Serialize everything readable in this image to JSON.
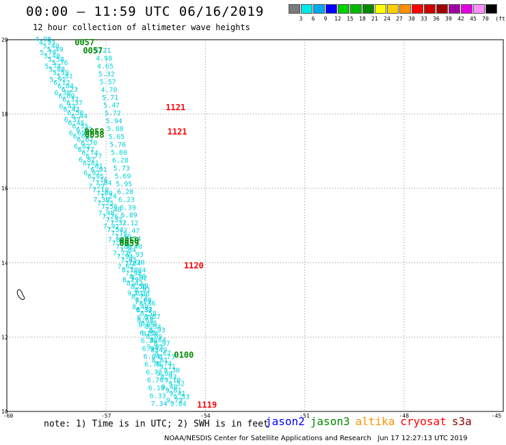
{
  "header": {
    "title": "00:00 — 11:59 UTC 06/16/2019",
    "subtitle": "12 hour collection of altimeter wave heights"
  },
  "colorbar": {
    "unit": "(ft)",
    "items": [
      {
        "label": "3",
        "color": "#7a7a7a"
      },
      {
        "label": "6",
        "color": "#00e8e8"
      },
      {
        "label": "9",
        "color": "#00a8f0"
      },
      {
        "label": "12",
        "color": "#0000ff"
      },
      {
        "label": "15",
        "color": "#00d000"
      },
      {
        "label": "18",
        "color": "#00b800"
      },
      {
        "label": "21",
        "color": "#008800"
      },
      {
        "label": "24",
        "color": "#ffff00"
      },
      {
        "label": "27",
        "color": "#ffd000"
      },
      {
        "label": "30",
        "color": "#ff9000"
      },
      {
        "label": "33",
        "color": "#ff0000"
      },
      {
        "label": "36",
        "color": "#d00000"
      },
      {
        "label": "39",
        "color": "#a00000"
      },
      {
        "label": "42",
        "color": "#a000a0"
      },
      {
        "label": "45",
        "color": "#e000e0"
      },
      {
        "label": "70",
        "color": "#ff90ff"
      },
      {
        "label": "",
        "color": "#000000"
      }
    ]
  },
  "footer": {
    "note": "note: 1) Time is in UTC; 2) SWH is in feet",
    "credit": "NOAA/NESDIS Center for Satellite Applications and Research   Jun 17 12:27:13 UTC 2019",
    "legend": [
      {
        "label": "jason2",
        "color": "#0000ff"
      },
      {
        "label": "jason3",
        "color": "#008800"
      },
      {
        "label": "altika",
        "color": "#ff9000"
      },
      {
        "label": "cryosat",
        "color": "#ff0000"
      },
      {
        "label": "s3a",
        "color": "#8b0000"
      }
    ]
  },
  "chart_data": {
    "type": "scatter",
    "title": "00:00 — 11:59 UTC 06/16/2019",
    "xlim": [
      -60,
      -45
    ],
    "ylim": [
      10,
      20
    ],
    "xticks": [
      "-60",
      "-57",
      "-54",
      "-51",
      "-48",
      "-45"
    ],
    "yticks": [
      "10",
      "12",
      "14",
      "16",
      "18",
      "20"
    ],
    "grid": true,
    "track_a": {
      "x_start": -59.15,
      "y_start": 19.95,
      "x_end": -55.15,
      "y_end": 10.15,
      "values": [
        "4.98",
        "4.93",
        "5.40",
        "5.49",
        "5.74",
        "5.40",
        "5.58",
        "5.76",
        "5.74",
        "5.88",
        "5.59",
        "5.81",
        "5.91",
        "6.12",
        "6.04",
        "6.23",
        "6.30",
        "6.09",
        "6.37",
        "6.37",
        "6.43",
        "6.43",
        "6.50",
        "6.44",
        "6.37",
        "6.45",
        "6.55",
        "6.62",
        "6.69",
        "6.63",
        "6.67",
        "6.70",
        "6.62",
        "6.77",
        "6.74",
        "6.77",
        "6.87",
        "6.81",
        "7.01",
        "6.91",
        "6.97",
        "6.95",
        "7.16",
        "7.04",
        "7.27",
        "7.10",
        "7.09",
        "7.24",
        "7.30",
        "7.25",
        "7.56",
        "7.40",
        "7.48",
        "7.26",
        "7.37",
        "7.32",
        "7.41",
        "7.54",
        "7.16",
        "7.40",
        "7.88",
        "7.60",
        "7.86",
        "7.64",
        "7.71",
        "7.94",
        "7.85",
        "7.84",
        "7.62",
        "8.10",
        "7.98",
        "8.18",
        "8.29",
        "8.42",
        "8.56",
        "8.91",
        "9.01",
        "8.75",
        "8.60",
        "8.36",
        "8.49",
        "8.37",
        "8.58",
        "8.57",
        "8.63",
        "8.75",
        "8.34",
        "8.93",
        "8.54",
        "8.69",
        "8.64",
        "8.97",
        "9.03",
        "8.49",
        "8.67",
        "8.73",
        "8.81",
        "8.74",
        "9.11",
        "9.30",
        "9.04",
        "8.93",
        "9.10",
        "9.52",
        "9.48",
        "9.61",
        "9.41",
        "9.53",
        "9.73",
        "9.84"
      ],
      "color": "#00d8d8"
    },
    "track_b": {
      "x_start": -57.35,
      "y_start": 19.65,
      "x_end": -55.65,
      "y_end": 10.15,
      "values": [
        "5.21",
        "4.98",
        "4.65",
        "5.32",
        "5.57",
        "4.70",
        "5.71",
        "5.47",
        "5.72",
        "5.94",
        "5.88",
        "5.65",
        "5.76",
        "5.80",
        "6.28",
        "5.73",
        "5.69",
        "5.95",
        "6.28",
        "6.23",
        "6.39",
        "6.89",
        "7.12",
        "7.47",
        "7.54",
        "7.40",
        "7.93",
        "7.20",
        "7.84",
        "7.32",
        "7.39",
        "7.26",
        "7.13",
        "6.38",
        "6.78",
        "6.83",
        "6.65",
        "6.30",
        "6.94",
        "6.04",
        "6.70",
        "6.73",
        "6.70",
        "6.19",
        "6.33",
        "7.34"
      ],
      "color": "#00d8d8"
    },
    "pass_times": [
      {
        "time": "0057",
        "lon": -57.95,
        "lat": 19.85,
        "color": "#008800"
      },
      {
        "time": "0057",
        "lon": -57.7,
        "lat": 19.63,
        "color": "#008800"
      },
      {
        "time": "0058",
        "lon": -57.65,
        "lat": 17.45,
        "color": "#008800"
      },
      {
        "time": "0058",
        "lon": -57.65,
        "lat": 17.37,
        "color": "#008800"
      },
      {
        "time": "0059",
        "lon": -56.6,
        "lat": 14.52,
        "color": "#008800"
      },
      {
        "time": "0059",
        "lon": -56.6,
        "lat": 14.45,
        "color": "#008800"
      },
      {
        "time": "0100",
        "lon": -54.95,
        "lat": 11.45,
        "color": "#008800"
      },
      {
        "time": "1121",
        "lon": -55.2,
        "lat": 18.1,
        "color": "#ff0000"
      },
      {
        "time": "1121",
        "lon": -55.15,
        "lat": 17.45,
        "color": "#ff0000"
      },
      {
        "time": "1120",
        "lon": -54.65,
        "lat": 13.85,
        "color": "#ff0000"
      },
      {
        "time": "1119",
        "lon": -54.25,
        "lat": 10.1,
        "color": "#ff0000"
      }
    ]
  }
}
